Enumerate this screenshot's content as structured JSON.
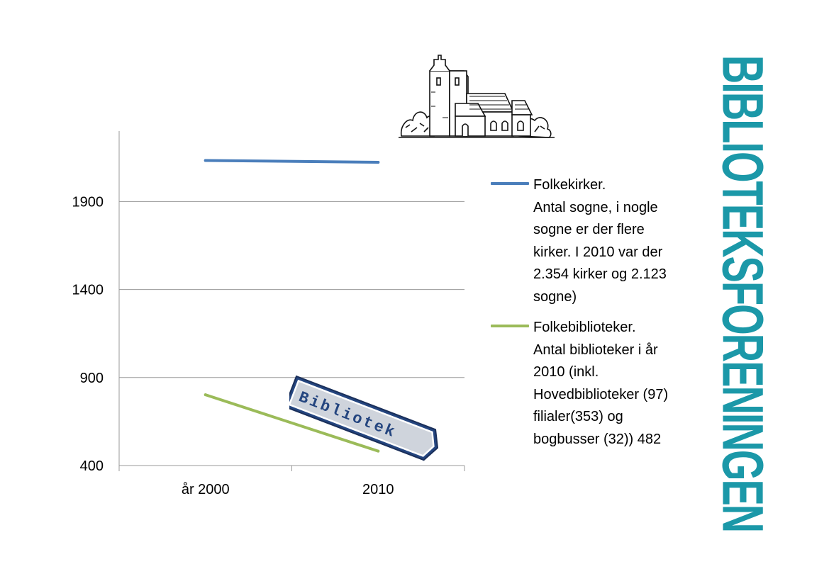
{
  "chart_data": {
    "type": "line",
    "categories": [
      "år 2000",
      "2010"
    ],
    "series": [
      {
        "name": "Folkekirker.\nAntal sogne, i nogle\nsogne er der flere\nkirker. I 2010 var der\n2.354 kirker og 2.123\nsogne)",
        "values": [
          2133,
          2123
        ],
        "color": "#4a7ebb"
      },
      {
        "name": "Folkebiblioteker.\nAntal biblioteker i år\n2010 (inkl.\nHovedbiblioteker (97)\nfilialer(353) og\nbogbusser (32)) 482",
        "values": [
          802,
          482
        ],
        "color": "#9bbb59"
      }
    ],
    "yticks": [
      400,
      900,
      1400,
      1900
    ],
    "ylim": [
      400,
      2300
    ],
    "grid": true,
    "legend": "right"
  },
  "brand": "BIBLIOTEKSFORENINGEN",
  "sign_text": "Bibliotek",
  "colors": {
    "brand": "#1b98a8",
    "grid": "#999999",
    "sign_blue": "#24457f"
  }
}
